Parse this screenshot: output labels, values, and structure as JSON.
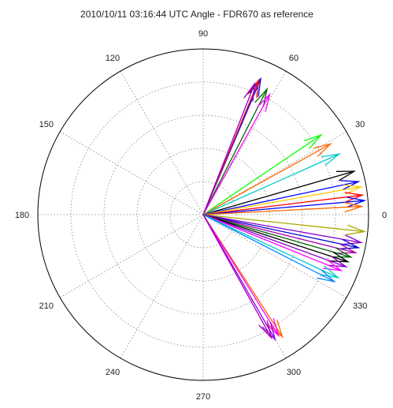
{
  "chart_data": {
    "type": "polar-arrows",
    "title": "2010/10/11 03:16:44 UTC Angle - FDR670 as reference",
    "angle_tick_labels": [
      "0",
      "30",
      "60",
      "90",
      "120",
      "150",
      "180",
      "210",
      "240",
      "270",
      "300",
      "330"
    ],
    "angle_ticks_deg": [
      0,
      30,
      60,
      90,
      120,
      150,
      180,
      210,
      240,
      270,
      300,
      330
    ],
    "radial_rings": [
      0.2,
      0.4,
      0.6,
      0.8,
      1.0
    ],
    "grid": true,
    "series": [
      {
        "color": "#0000ff",
        "angle": 67,
        "magnitude": 0.89
      },
      {
        "color": "#ff0000",
        "angle": 67.5,
        "magnitude": 0.88
      },
      {
        "color": "#8800cc",
        "angle": 68.5,
        "magnitude": 0.85
      },
      {
        "color": "#006600",
        "angle": 63,
        "magnitude": 0.85
      },
      {
        "color": "#ff00ff",
        "angle": 61,
        "magnitude": 0.83
      },
      {
        "color": "#00ff00",
        "angle": 34,
        "magnitude": 0.86
      },
      {
        "color": "#ff6600",
        "angle": 29,
        "magnitude": 0.88
      },
      {
        "color": "#00cccc",
        "angle": 24,
        "magnitude": 0.9
      },
      {
        "color": "#000000",
        "angle": 16,
        "magnitude": 0.95
      },
      {
        "color": "#0000ff",
        "angle": 12,
        "magnitude": 0.96
      },
      {
        "color": "#ffcc00",
        "angle": 10,
        "magnitude": 0.97
      },
      {
        "color": "#ff0000",
        "angle": 7,
        "magnitude": 0.97
      },
      {
        "color": "#0000ff",
        "angle": 5,
        "magnitude": 0.98
      },
      {
        "color": "#ff6600",
        "angle": 3,
        "magnitude": 0.96
      },
      {
        "color": "#aaaa00",
        "angle": -6,
        "magnitude": 0.98
      },
      {
        "color": "#8800cc",
        "angle": -10,
        "magnitude": 0.97
      },
      {
        "color": "#0000cc",
        "angle": -12,
        "magnitude": 0.96
      },
      {
        "color": "#aa00aa",
        "angle": -14,
        "magnitude": 0.95
      },
      {
        "color": "#006600",
        "angle": -16,
        "magnitude": 0.93
      },
      {
        "color": "#000000",
        "angle": -18,
        "magnitude": 0.92
      },
      {
        "color": "#8800cc",
        "angle": -20,
        "magnitude": 0.92
      },
      {
        "color": "#ff00ff",
        "angle": -22,
        "magnitude": 0.9
      },
      {
        "color": "#00cccc",
        "angle": -25,
        "magnitude": 0.9
      },
      {
        "color": "#0088ff",
        "angle": -27,
        "magnitude": 0.89
      },
      {
        "color": "#ff6600",
        "angle": -57,
        "magnitude": 0.88
      },
      {
        "color": "#ff00ff",
        "angle": -58,
        "magnitude": 0.86
      },
      {
        "color": "#8800ff",
        "angle": -60,
        "magnitude": 0.87
      },
      {
        "color": "#aa00aa",
        "angle": -61,
        "magnitude": 0.85
      }
    ]
  }
}
